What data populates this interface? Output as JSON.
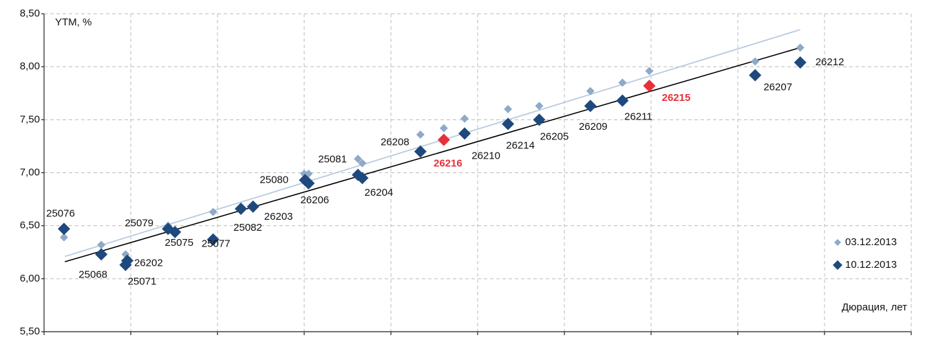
{
  "chart_data": {
    "type": "scatter",
    "y_label": "YTM, %",
    "x_label": "Дюрация, лет",
    "xlim": [
      0,
      10
    ],
    "xticks": [
      0,
      1,
      2,
      3,
      4,
      5,
      6,
      7,
      8,
      9,
      10
    ],
    "ylim": [
      5.5,
      8.5
    ],
    "yticks": [
      {
        "value": 5.5,
        "label": "5,50"
      },
      {
        "value": 6,
        "label": "6,00"
      },
      {
        "value": 6.5,
        "label": "6,50"
      },
      {
        "value": 7,
        "label": "7,00"
      },
      {
        "value": 7.5,
        "label": "7,50"
      },
      {
        "value": 8,
        "label": "8,00"
      },
      {
        "value": 8.5,
        "label": "8,50"
      }
    ],
    "grid": true,
    "series": [
      {
        "name": "03.12.2013",
        "color": "#8fa9c8",
        "x": [
          0.23,
          0.66,
          0.94,
          1.43,
          1.95,
          3.0,
          3.05,
          3.62,
          3.67,
          4.34,
          4.61,
          4.85,
          5.35,
          5.71,
          6.3,
          6.67,
          6.98,
          8.2,
          8.72
        ],
        "values": [
          6.39,
          6.32,
          6.23,
          6.5,
          6.63,
          6.99,
          6.99,
          7.13,
          7.09,
          7.36,
          7.42,
          7.51,
          7.6,
          7.63,
          7.77,
          7.85,
          7.96,
          8.05,
          8.18
        ],
        "trend_x": [
          0.24,
          8.72
        ],
        "trend_values": [
          6.21,
          8.35
        ],
        "trend_color": "#b8cbe0"
      },
      {
        "name": "10.12.2013",
        "color": "#1f497d",
        "x": [
          0.23,
          0.66,
          0.94,
          0.96,
          1.43,
          1.51,
          1.95,
          2.27,
          2.41,
          3.01,
          3.05,
          3.62,
          3.67,
          4.34,
          4.61,
          4.85,
          5.35,
          5.71,
          6.3,
          6.67,
          6.98,
          8.2,
          8.72
        ],
        "values": [
          6.47,
          6.23,
          6.13,
          6.17,
          6.47,
          6.44,
          6.37,
          6.66,
          6.68,
          6.93,
          6.9,
          6.98,
          6.95,
          7.2,
          7.31,
          7.37,
          7.46,
          7.5,
          7.63,
          7.68,
          7.82,
          7.92,
          8.04
        ],
        "labels": [
          "25076",
          "25068",
          "25071",
          "26202",
          "25079",
          "25075",
          "25077",
          "25082",
          "26203",
          "25080",
          "26206",
          "25081",
          "26204",
          "26208",
          "26216",
          "26210",
          "26214",
          "26205",
          "26209",
          "26211",
          "26215",
          "26207",
          "26212"
        ],
        "highlight_color": "#e8303a",
        "highlighted": [
          "26216",
          "26215"
        ],
        "trend_x": [
          0.24,
          8.72
        ],
        "trend_values": [
          6.16,
          8.18
        ],
        "trend_color": "#000000"
      }
    ]
  }
}
